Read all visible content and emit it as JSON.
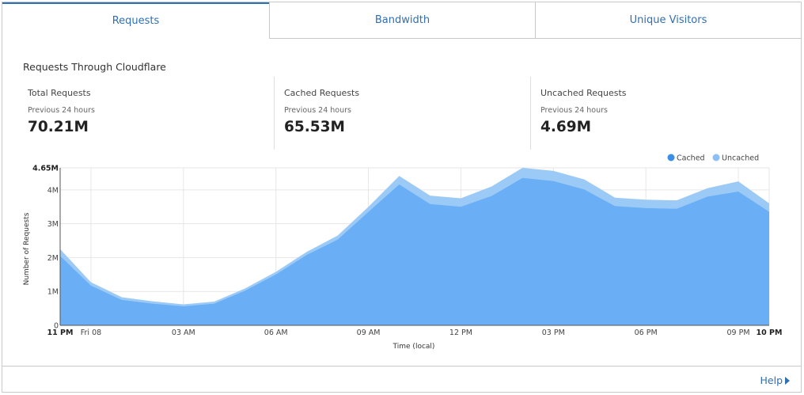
{
  "tabs": [
    {
      "label": "Requests",
      "active": true
    },
    {
      "label": "Bandwidth",
      "active": false
    },
    {
      "label": "Unique Visitors",
      "active": false
    }
  ],
  "section_title": "Requests Through Cloudflare",
  "stats": [
    {
      "label": "Total Requests",
      "period": "Previous 24 hours",
      "value": "70.21M"
    },
    {
      "label": "Cached Requests",
      "period": "Previous 24 hours",
      "value": "65.53M"
    },
    {
      "label": "Uncached Requests",
      "period": "Previous 24 hours",
      "value": "4.69M"
    }
  ],
  "help_label": "Help",
  "colors": {
    "accent": "#2f6fb3",
    "cached": "#6aaef5",
    "uncached": "#9ccaf7",
    "cached_legend": "#3b8fe8",
    "uncached_legend": "#8cc0f5"
  },
  "chart_data": {
    "type": "area",
    "stacked": true,
    "xlabel": "Time (local)",
    "ylabel": "Number of Requests",
    "ylim": [
      0,
      4650000
    ],
    "y_ticks": [
      {
        "value": 0,
        "label": "0"
      },
      {
        "value": 1000000,
        "label": "1M"
      },
      {
        "value": 2000000,
        "label": "2M"
      },
      {
        "value": 3000000,
        "label": "3M"
      },
      {
        "value": 4000000,
        "label": "4M"
      },
      {
        "value": 4650000,
        "label": "4.65M",
        "bold": true
      }
    ],
    "x_range": [
      0,
      23
    ],
    "x_ticks": [
      {
        "x": 0,
        "label": "11 PM",
        "bold": true
      },
      {
        "x": 1,
        "label": "Fri 08"
      },
      {
        "x": 4,
        "label": "03 AM"
      },
      {
        "x": 7,
        "label": "06 AM"
      },
      {
        "x": 10,
        "label": "09 AM"
      },
      {
        "x": 13,
        "label": "12 PM"
      },
      {
        "x": 16,
        "label": "03 PM"
      },
      {
        "x": 19,
        "label": "06 PM"
      },
      {
        "x": 22,
        "label": "09 PM"
      },
      {
        "x": 23,
        "label": "10 PM",
        "bold": true
      }
    ],
    "x": [
      0,
      1,
      2,
      3,
      4,
      5,
      6,
      7,
      8,
      9,
      10,
      11,
      12,
      13,
      14,
      15,
      16,
      17,
      18,
      19,
      20,
      21,
      22,
      23
    ],
    "legend_position": "top-right",
    "grid": true,
    "series": [
      {
        "name": "Cached",
        "values": [
          2050000,
          1170000,
          750000,
          640000,
          560000,
          640000,
          1020000,
          1500000,
          2080000,
          2530000,
          3350000,
          4160000,
          3580000,
          3500000,
          3820000,
          4350000,
          4260000,
          4010000,
          3520000,
          3460000,
          3440000,
          3800000,
          3950000,
          3350000
        ]
      },
      {
        "name": "Uncached",
        "values": [
          200000,
          100000,
          80000,
          70000,
          60000,
          60000,
          70000,
          80000,
          90000,
          120000,
          150000,
          250000,
          250000,
          250000,
          280000,
          300000,
          300000,
          300000,
          250000,
          250000,
          250000,
          250000,
          300000,
          250000
        ]
      }
    ]
  }
}
